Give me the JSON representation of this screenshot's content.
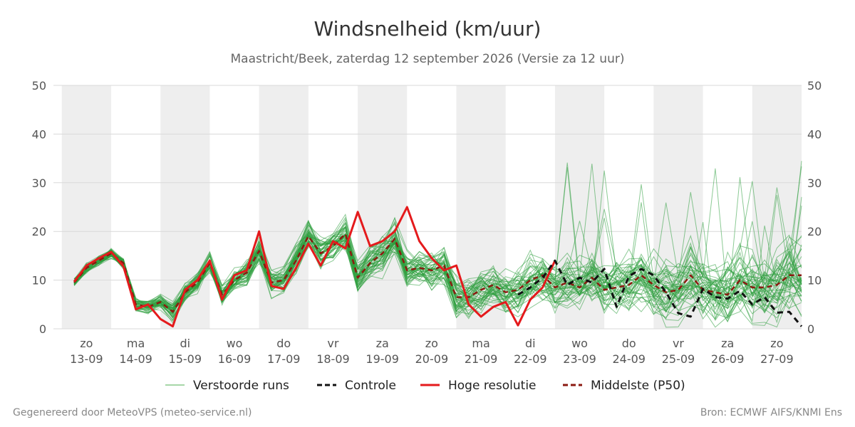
{
  "header": {
    "title": "Windsnelheid (km/uur)",
    "subtitle": "Maastricht/Beek, zaterdag 12 september 2026 (Versie za 12 uur)"
  },
  "footer": {
    "left": "Gegenereerd door MeteoVPS (meteo-service.nl)",
    "right": "Bron: ECMWF AIFS/KNMI Ens"
  },
  "chart_data": {
    "type": "line",
    "xlabel": "",
    "ylabel": "",
    "ylim": [
      0,
      50
    ],
    "y_ticks": [
      0,
      10,
      20,
      30,
      40,
      50
    ],
    "x_range": [
      -0.67,
      14.5
    ],
    "grid": true,
    "legend_position": "bottom",
    "day_labels": [
      {
        "day": "zo",
        "date": "13-09"
      },
      {
        "day": "ma",
        "date": "14-09"
      },
      {
        "day": "di",
        "date": "15-09"
      },
      {
        "day": "wo",
        "date": "16-09"
      },
      {
        "day": "do",
        "date": "17-09"
      },
      {
        "day": "vr",
        "date": "18-09"
      },
      {
        "day": "za",
        "date": "19-09"
      },
      {
        "day": "zo",
        "date": "20-09"
      },
      {
        "day": "ma",
        "date": "21-09"
      },
      {
        "day": "di",
        "date": "22-09"
      },
      {
        "day": "wo",
        "date": "23-09"
      },
      {
        "day": "do",
        "date": "24-09"
      },
      {
        "day": "vr",
        "date": "25-09"
      },
      {
        "day": "za",
        "date": "26-09"
      },
      {
        "day": "zo",
        "date": "27-09"
      }
    ],
    "night_shading": true,
    "legend": [
      {
        "label": "Verstoorde runs",
        "style": "thin",
        "color": "#4caf50"
      },
      {
        "label": "Controle",
        "style": "dashed",
        "color": "#111111"
      },
      {
        "label": "Hoge resolutie",
        "style": "solid",
        "color": "#e41a1c"
      },
      {
        "label": "Middelste (P50)",
        "style": "dashed",
        "color": "#8b1a10"
      }
    ],
    "series": [
      {
        "name": "Hoge resolutie",
        "x": [
          -0.25,
          0,
          0.25,
          0.5,
          0.75,
          1,
          1.25,
          1.5,
          1.75,
          2,
          2.25,
          2.5,
          2.75,
          3,
          3.25,
          3.5,
          3.75,
          4,
          4.25,
          4.5,
          4.75,
          5,
          5.25,
          5.5,
          5.75,
          6,
          6.25,
          6.5,
          6.75,
          7,
          7.25,
          7.5,
          7.75,
          8,
          8.25,
          8.5,
          8.75,
          9,
          9.25,
          9.5
        ],
        "values": [
          9.7,
          13,
          14.5,
          15.8,
          12.8,
          4,
          5,
          2,
          0.5,
          8,
          10,
          14,
          6,
          11,
          12,
          20,
          8.8,
          8.2,
          12.5,
          17.5,
          13,
          18,
          16.5,
          24,
          17,
          18,
          20,
          25,
          18,
          14.5,
          12,
          13,
          5,
          2.5,
          4.5,
          5.5,
          0.7,
          6,
          8.5,
          14
        ]
      },
      {
        "name": "Controle",
        "x": [
          8.75,
          9,
          9.25,
          9.5,
          9.75,
          10,
          10.25,
          10.5,
          10.75,
          11,
          11.25,
          11.5,
          11.75,
          12,
          12.25,
          12.5,
          12.75,
          13,
          13.25,
          13.5,
          13.75,
          14,
          14.25,
          14.5
        ],
        "values": [
          7,
          8.5,
          10.5,
          14,
          9,
          10.5,
          9.5,
          12.3,
          4.5,
          10.8,
          12.3,
          11,
          7.5,
          3.2,
          2.5,
          8.2,
          6.5,
          6.2,
          7.8,
          5,
          6.5,
          3.3,
          3.5,
          0.5
        ]
      },
      {
        "name": "Middelste (P50)",
        "x": [
          -0.25,
          0,
          0.25,
          0.5,
          0.75,
          1,
          1.25,
          1.5,
          1.75,
          2,
          2.25,
          2.5,
          2.75,
          3,
          3.25,
          3.5,
          3.75,
          4,
          4.25,
          4.5,
          4.75,
          5,
          5.25,
          5.5,
          5.75,
          6,
          6.25,
          6.5,
          6.75,
          7,
          7.25,
          7.5,
          7.75,
          8,
          8.25,
          8.5,
          8.75,
          9,
          9.25,
          9.5,
          9.75,
          10,
          10.25,
          10.5,
          10.75,
          11,
          11.25,
          11.5,
          11.75,
          12,
          12.25,
          12.5,
          12.75,
          13,
          13.25,
          13.5,
          13.75,
          14,
          14.25,
          14.5
        ],
        "values": [
          9.5,
          12.5,
          14,
          15.5,
          13.5,
          5,
          4.5,
          5.5,
          3.5,
          7.5,
          9.5,
          13.5,
          7,
          10,
          11.5,
          16,
          9.5,
          10,
          14,
          19,
          15.5,
          17,
          19.5,
          10.5,
          13.5,
          15.5,
          18.5,
          12,
          12.5,
          12,
          13,
          6.5,
          6.5,
          8,
          9,
          7.5,
          8,
          10,
          11,
          8.5,
          9.5,
          8.5,
          10.5,
          8,
          8.5,
          9,
          11,
          9,
          7.5,
          8,
          11,
          8,
          7.5,
          7,
          10,
          8.5,
          8.5,
          9,
          11,
          11
        ]
      }
    ]
  }
}
